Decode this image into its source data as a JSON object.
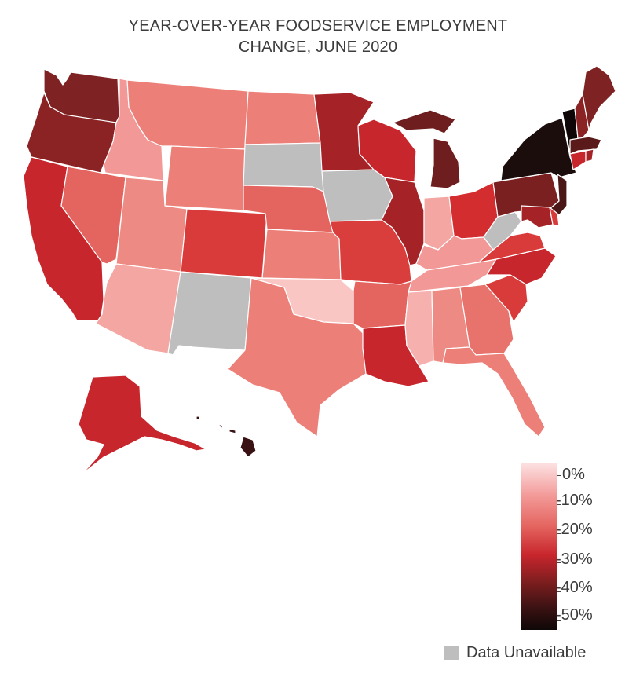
{
  "title_line1": "YEAR-OVER-YEAR FOODSERVICE EMPLOYMENT",
  "title_line2": "CHANGE, JUNE 2020",
  "legend": {
    "ticks": [
      "0%",
      "-10%",
      "-20%",
      "-30%",
      "-40%",
      "-50%"
    ],
    "unavailable_label": "Data Unavailable",
    "unavailable_color": "#bebebe"
  },
  "colors": {
    "scale_light": "#fce1e1",
    "scale_mid": "#e4645f",
    "scale_dark": "#0f0707"
  }
}
